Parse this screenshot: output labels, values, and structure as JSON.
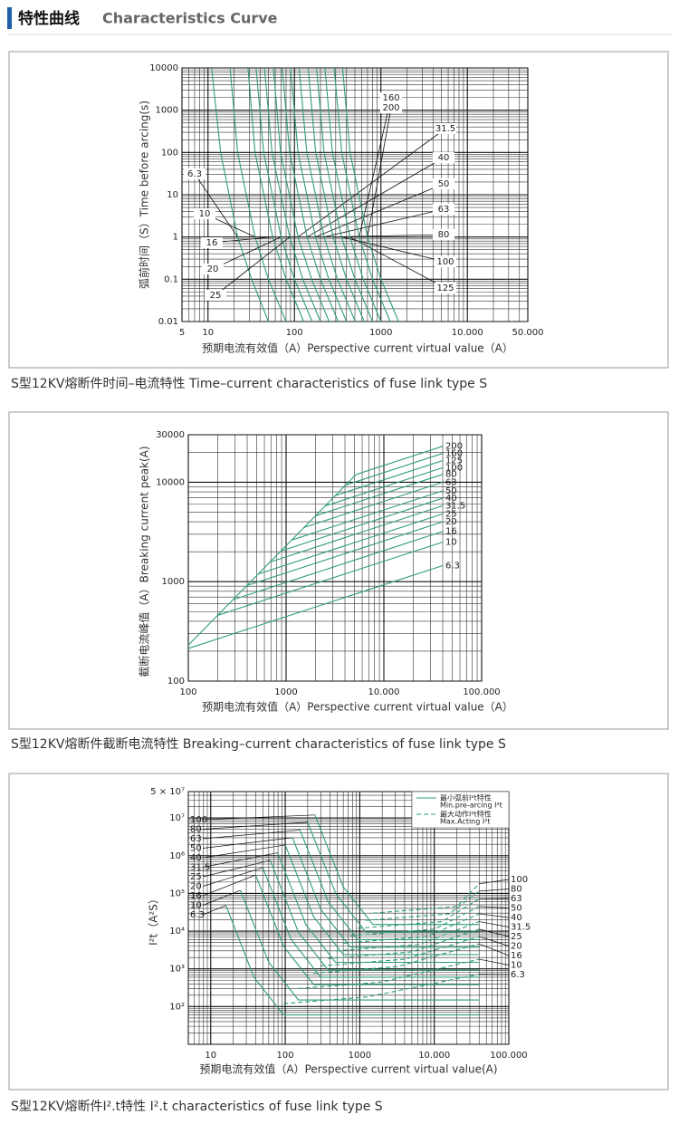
{
  "header": {
    "title_cn": "特性曲线",
    "title_en": "Characteristics Curve"
  },
  "chart_data": [
    {
      "type": "line",
      "log_x": true,
      "log_y": true,
      "grid": true,
      "minor_grid": true,
      "color": "#2f9e72",
      "ylabel": "弧前时间（S）Time before arcing(s)",
      "xlabel": "预期电流有效值（A）Perspective current virtual value（A）",
      "caption": "S型12KV熔断件时间–电流特性 Time–current characteristics of fuse link type S",
      "xlim": [
        5,
        50000
      ],
      "ylim": [
        0.01,
        10000
      ],
      "xticks": [
        5,
        10,
        100,
        1000,
        {
          "value": 10000,
          "label": "10.000"
        },
        {
          "value": 50000,
          "label": "50.000"
        }
      ],
      "yticks": [
        0.01,
        0.1,
        1,
        10,
        100,
        1000,
        10000
      ],
      "series": [
        {
          "name": "6.3",
          "x": [
            11,
            14,
            22,
            32,
            50
          ],
          "values": [
            10000,
            100,
            1,
            0.1,
            0.01
          ]
        },
        {
          "name": "10",
          "x": [
            18,
            22,
            35,
            50,
            80
          ],
          "values": [
            10000,
            100,
            1,
            0.1,
            0.01
          ]
        },
        {
          "name": "16",
          "x": [
            29,
            35,
            56,
            80,
            128
          ],
          "values": [
            10000,
            100,
            1,
            0.1,
            0.01
          ]
        },
        {
          "name": "20",
          "x": [
            36,
            44,
            70,
            100,
            160
          ],
          "values": [
            10000,
            100,
            1,
            0.1,
            0.01
          ]
        },
        {
          "name": "25",
          "x": [
            45,
            55,
            88,
            125,
            200
          ],
          "values": [
            10000,
            100,
            1,
            0.1,
            0.01
          ]
        },
        {
          "name": "31.5",
          "x": [
            57,
            69,
            110,
            158,
            252
          ],
          "values": [
            10000,
            100,
            1,
            0.1,
            0.01
          ]
        },
        {
          "name": "40",
          "x": [
            72,
            88,
            140,
            200,
            320
          ],
          "values": [
            10000,
            100,
            1,
            0.1,
            0.01
          ]
        },
        {
          "name": "50",
          "x": [
            90,
            110,
            175,
            250,
            400
          ],
          "values": [
            10000,
            100,
            1,
            0.1,
            0.01
          ]
        },
        {
          "name": "63",
          "x": [
            113,
            139,
            220,
            315,
            504
          ],
          "values": [
            10000,
            100,
            1,
            0.1,
            0.01
          ]
        },
        {
          "name": "80",
          "x": [
            144,
            176,
            280,
            400,
            640
          ],
          "values": [
            10000,
            100,
            1,
            0.1,
            0.01
          ]
        },
        {
          "name": "100",
          "x": [
            180,
            220,
            350,
            500,
            800
          ],
          "values": [
            10000,
            100,
            1,
            0.1,
            0.01
          ]
        },
        {
          "name": "125",
          "x": [
            225,
            275,
            438,
            625,
            1000
          ],
          "values": [
            10000,
            100,
            1,
            0.1,
            0.01
          ]
        },
        {
          "name": "160",
          "x": [
            288,
            352,
            560,
            800,
            1280
          ],
          "values": [
            10000,
            100,
            1,
            0.1,
            0.01
          ]
        },
        {
          "name": "200",
          "x": [
            360,
            440,
            700,
            1000,
            1600
          ],
          "values": [
            10000,
            100,
            1,
            0.1,
            0.01
          ]
        }
      ]
    },
    {
      "type": "line",
      "log_x": true,
      "log_y": true,
      "grid": true,
      "minor_grid": true,
      "color": "#2f9e72",
      "ylabel": "截断电流峰值（A）Breaking current peak(A)",
      "xlabel": "预期电流有效值（A）Perspective current virtual value（A）",
      "caption": "S型12KV熔断件截断电流特性 Breaking–current characteristics of fuse link type S",
      "xlim": [
        100,
        100000
      ],
      "ylim": [
        100,
        30000
      ],
      "xticks": [
        100,
        1000,
        {
          "value": 10000,
          "label": "10.000"
        },
        {
          "value": 100000,
          "label": "100.000"
        }
      ],
      "yticks": [
        100,
        1000,
        10000,
        30000
      ],
      "series": [
        {
          "x": [
            100,
            5191
          ],
          "values": [
            230,
            11939
          ]
        },
        {
          "name": "6.3",
          "x": [
            100,
            40000
          ],
          "values": [
            213,
            1450
          ]
        },
        {
          "name": "10",
          "x": [
            199,
            40000
          ],
          "values": [
            458,
            2500
          ]
        },
        {
          "name": "16",
          "x": [
            286,
            40000
          ],
          "values": [
            658,
            3200
          ]
        },
        {
          "name": "20",
          "x": [
            397,
            40000
          ],
          "values": [
            913,
            4000
          ]
        },
        {
          "name": "25",
          "x": [
            519,
            40000
          ],
          "values": [
            1194,
            4800
          ]
        },
        {
          "name": "31.5",
          "x": [
            684,
            40000
          ],
          "values": [
            1573,
            5800
          ]
        },
        {
          "name": "40",
          "x": [
            884,
            40000
          ],
          "values": [
            2033,
            6900
          ]
        },
        {
          "name": "50",
          "x": [
            1138,
            40000
          ],
          "values": [
            2617,
            8200
          ]
        },
        {
          "name": "63",
          "x": [
            1525,
            40000
          ],
          "values": [
            3508,
            10000
          ]
        },
        {
          "name": "80",
          "x": [
            1995,
            40000
          ],
          "values": [
            4588,
            12000
          ]
        },
        {
          "name": "100",
          "x": [
            2503,
            40000
          ],
          "values": [
            5757,
            14000
          ]
        },
        {
          "name": "125",
          "x": [
            3185,
            40000
          ],
          "values": [
            7326,
            16500
          ]
        },
        {
          "name": "160",
          "x": [
            4069,
            40000
          ],
          "values": [
            9359,
            19500
          ]
        },
        {
          "name": "200",
          "x": [
            5191,
            40000
          ],
          "values": [
            11939,
            23000
          ]
        }
      ]
    },
    {
      "type": "line",
      "log_x": true,
      "log_y": true,
      "grid": true,
      "minor_grid": true,
      "color": "#2f9e72",
      "ylabel": "I²t（A²S）",
      "xlabel": "预期电流有效值（A）Perspective current virtual value(A)",
      "caption": "S型12KV熔断件I².t特性 I².t characteristics of fuse link type S",
      "xlim": [
        5,
        100000
      ],
      "ylim": [
        10,
        50000000
      ],
      "xticks": [
        10,
        100,
        1000,
        {
          "value": 10000,
          "label": "10.000"
        },
        {
          "value": 100000,
          "label": "100.000"
        }
      ],
      "yticks": [
        {
          "value": 100,
          "label": "10²"
        },
        {
          "value": 1000,
          "label": "10³"
        },
        {
          "value": 10000,
          "label": "10⁴"
        },
        {
          "value": 100000,
          "label": "10⁵"
        },
        {
          "value": 1000000,
          "label": "10⁶"
        },
        {
          "value": 10000000,
          "label": "10⁷"
        },
        {
          "value": 50000000,
          "label": "5 × 10⁷"
        }
      ],
      "legend": [
        {
          "lines": [
            "最小弧前I²t特性",
            "Min.pre-arcing I²t"
          ],
          "dash": false
        },
        {
          "lines": [
            "最大动作I²t特性",
            "Max.Acting I²t"
          ],
          "dash": true
        }
      ],
      "series": [
        {
          "name": "6.3",
          "x": [
            16,
            38,
            95,
            40000
          ],
          "values": [
            48000,
            600,
            60,
            60
          ],
          "acting_x": [
            95,
            1260,
            40000
          ],
          "acting_values": [
            120,
            180,
            720
          ]
        },
        {
          "name": "10",
          "x": [
            25,
            60,
            150,
            40000
          ],
          "values": [
            120000,
            1500,
            150,
            150
          ],
          "acting_x": [
            150,
            2000,
            40000
          ],
          "acting_values": [
            300,
            450,
            1800
          ]
        },
        {
          "name": "16",
          "x": [
            40,
            96,
            240,
            40000
          ],
          "values": [
            307000,
            3840,
            384,
            384
          ],
          "acting_x": [
            240,
            3200,
            40000
          ],
          "acting_values": [
            768,
            1152,
            4608
          ]
        },
        {
          "name": "20",
          "x": [
            50,
            120,
            300,
            40000
          ],
          "values": [
            480000,
            6000,
            600,
            600
          ],
          "acting_x": [
            300,
            4000,
            40000
          ],
          "acting_values": [
            1200,
            1800,
            7200
          ]
        },
        {
          "name": "25",
          "x": [
            63,
            150,
            375,
            40000
          ],
          "values": [
            752000,
            9400,
            940,
            940
          ],
          "acting_x": [
            375,
            5000,
            40000
          ],
          "acting_values": [
            1880,
            2820,
            11280
          ]
        },
        {
          "name": "31.5",
          "x": [
            79,
            189,
            473,
            40000
          ],
          "values": [
            1192000,
            14900,
            1490,
            1490
          ],
          "acting_x": [
            473,
            6300,
            40000
          ],
          "acting_values": [
            2980,
            4470,
            17880
          ]
        },
        {
          "name": "40",
          "x": [
            100,
            240,
            600,
            40000
          ],
          "values": [
            1920000,
            24000,
            2400,
            2400
          ],
          "acting_x": [
            600,
            8000,
            40000
          ],
          "acting_values": [
            4800,
            7200,
            28800
          ]
        },
        {
          "name": "50",
          "x": [
            125,
            300,
            750,
            40000
          ],
          "values": [
            3000000,
            37500,
            3750,
            3750
          ],
          "acting_x": [
            750,
            10000,
            40000
          ],
          "acting_values": [
            7500,
            11250,
            45000
          ]
        },
        {
          "name": "63",
          "x": [
            158,
            378,
            945,
            40000
          ],
          "values": [
            4760000,
            59500,
            5950,
            5950
          ],
          "acting_x": [
            945,
            12600,
            40000
          ],
          "acting_values": [
            11900,
            17850,
            71400
          ]
        },
        {
          "name": "80",
          "x": [
            200,
            480,
            1200,
            40000
          ],
          "values": [
            7680000,
            96000,
            9600,
            9600
          ],
          "acting_x": [
            1200,
            16000,
            40000
          ],
          "acting_values": [
            19200,
            28800,
            115200
          ]
        },
        {
          "name": "100",
          "x": [
            250,
            600,
            1500,
            40000
          ],
          "values": [
            12000000,
            150000,
            15000,
            15000
          ],
          "acting_x": [
            1500,
            20000,
            40000
          ],
          "acting_values": [
            30000,
            45000,
            180000
          ]
        }
      ]
    }
  ]
}
